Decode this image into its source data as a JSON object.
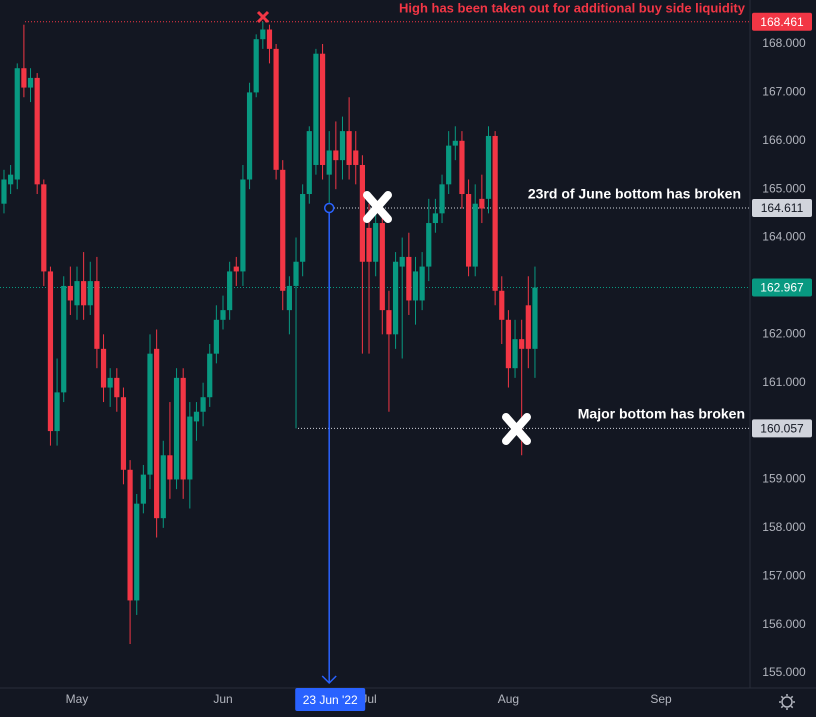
{
  "chart_data": {
    "type": "candlestick",
    "up_color": "#089981",
    "down_color": "#f23645",
    "xlim": [
      -0.6,
      112.4
    ],
    "xticks": [
      {
        "value": 11,
        "label": "May"
      },
      {
        "value": 33,
        "label": "Jun"
      },
      {
        "value": 55,
        "label": "Jul"
      },
      {
        "value": 76,
        "label": "Aug"
      },
      {
        "value": 99,
        "label": "Sep"
      }
    ],
    "ylim": [
      154.69,
      168.91
    ],
    "yticks": [
      {
        "value": 155,
        "label": "155.000"
      },
      {
        "value": 156,
        "label": "156.000"
      },
      {
        "value": 157,
        "label": "157.000"
      },
      {
        "value": 158,
        "label": "158.000"
      },
      {
        "value": 159,
        "label": "159.000"
      },
      {
        "value": 160,
        "label": "160.000"
      },
      {
        "value": 161,
        "label": "161.000"
      },
      {
        "value": 162,
        "label": "162.000"
      },
      {
        "value": 163,
        "label": "163.000"
      },
      {
        "value": 164,
        "label": "164.000"
      },
      {
        "value": 165,
        "label": "165.000"
      },
      {
        "value": 166,
        "label": "166.000"
      },
      {
        "value": 167,
        "label": "167.000"
      },
      {
        "value": 168,
        "label": "168.000"
      }
    ],
    "grid": false,
    "candles": {
      "open": [
        164.7,
        165.1,
        165.2,
        167.5,
        167.1,
        167.3,
        165.1,
        163.3,
        160.0,
        160.8,
        163.0,
        162.6,
        163.1,
        162.6,
        163.1,
        161.7,
        160.9,
        161.1,
        160.7,
        159.2,
        156.5,
        158.5,
        159.1,
        161.7,
        158.2,
        159.5,
        159.0,
        161.1,
        159.0,
        160.2,
        160.4,
        160.7,
        161.6,
        162.3,
        162.5,
        163.4,
        163.3,
        165.2,
        167.0,
        168.1,
        168.3,
        167.9,
        165.4,
        162.5,
        163.0,
        163.5,
        164.9,
        165.5,
        167.8,
        165.3,
        165.8,
        165.6,
        166.2,
        165.8,
        165.5,
        164.2,
        163.5,
        164.3,
        162.5,
        162.0,
        163.4,
        163.6,
        162.7,
        162.7,
        163.4,
        164.3,
        164.5,
        165.1,
        165.9,
        166.0,
        164.9,
        163.4,
        164.8,
        164.8,
        166.1,
        162.9,
        162.3,
        161.3,
        161.9,
        162.6,
        161.7
      ],
      "high": [
        165.4,
        165.5,
        167.6,
        168.4,
        167.5,
        167.4,
        165.2,
        163.4,
        161.5,
        163.2,
        163.4,
        163.4,
        163.7,
        163.5,
        163.6,
        162.0,
        161.3,
        161.3,
        160.9,
        159.4,
        158.7,
        159.3,
        162.0,
        162.1,
        159.8,
        160.6,
        161.3,
        161.3,
        160.6,
        160.6,
        161.0,
        161.8,
        162.6,
        162.8,
        163.5,
        163.6,
        165.5,
        167.2,
        168.2,
        168.461,
        168.4,
        168.0,
        165.6,
        163.2,
        164.0,
        165.1,
        166.3,
        167.9,
        168.0,
        166.2,
        166.4,
        166.5,
        166.9,
        166.2,
        165.7,
        164.7,
        164.6,
        164.5,
        162.9,
        163.7,
        164.0,
        164.1,
        163.6,
        163.7,
        164.8,
        164.8,
        165.3,
        166.2,
        166.3,
        166.2,
        165.2,
        165.1,
        165.3,
        166.3,
        166.2,
        163.2,
        162.5,
        162.3,
        162.3,
        163.2,
        163.4
      ],
      "low": [
        164.5,
        164.9,
        165.0,
        166.9,
        166.8,
        164.9,
        163.0,
        159.7,
        159.7,
        160.6,
        162.4,
        162.3,
        162.3,
        162.4,
        161.3,
        160.6,
        160.5,
        160.4,
        158.9,
        155.6,
        156.2,
        158.3,
        158.8,
        157.8,
        158.0,
        158.6,
        158.8,
        158.6,
        158.4,
        159.8,
        160.1,
        160.5,
        161.4,
        162.1,
        162.3,
        163.0,
        163.0,
        165.0,
        166.9,
        167.9,
        167.6,
        165.2,
        162.5,
        162.0,
        160.057,
        163.2,
        164.7,
        165.3,
        165.2,
        164.611,
        165.0,
        165.2,
        165.2,
        165.1,
        161.6,
        161.6,
        163.2,
        162.0,
        160.4,
        161.7,
        161.5,
        162.4,
        162.2,
        162.5,
        163.1,
        164.1,
        164.3,
        164.9,
        165.6,
        164.6,
        163.2,
        163.2,
        164.3,
        164.5,
        162.6,
        161.8,
        160.9,
        161.1,
        159.5,
        161.3,
        161.1
      ],
      "close": [
        165.2,
        165.3,
        167.5,
        167.1,
        167.3,
        165.1,
        163.3,
        160.0,
        160.8,
        163.0,
        162.7,
        163.1,
        162.6,
        163.1,
        161.7,
        160.9,
        161.1,
        160.7,
        159.2,
        156.5,
        158.5,
        159.1,
        161.6,
        158.2,
        159.5,
        159.0,
        161.1,
        159.0,
        160.3,
        160.4,
        160.7,
        161.6,
        162.3,
        162.5,
        163.3,
        163.3,
        165.2,
        167.0,
        168.1,
        168.3,
        167.9,
        165.4,
        162.9,
        163.0,
        163.5,
        164.9,
        166.2,
        167.8,
        165.5,
        165.8,
        165.6,
        166.2,
        165.5,
        165.5,
        163.5,
        163.5,
        164.3,
        162.5,
        162.0,
        163.5,
        163.6,
        162.7,
        163.3,
        163.4,
        164.3,
        164.5,
        165.1,
        165.9,
        166.0,
        164.9,
        163.4,
        164.7,
        164.6,
        166.1,
        162.9,
        162.3,
        161.3,
        161.9,
        161.7,
        161.7,
        162.967
      ]
    },
    "levels": [
      {
        "value": 168.461,
        "color": "#f23645"
      },
      {
        "value": 164.611,
        "color": "#d1d4dc"
      },
      {
        "value": 162.967,
        "color": "#089981"
      },
      {
        "value": 160.057,
        "color": "#d1d4dc"
      }
    ],
    "crosshair": {
      "index": 49,
      "value": 164.611,
      "label": "23 Jun '22",
      "color": "#2962ff"
    },
    "annotations": [
      "High has been taken out for additional buy side liquidity",
      "23rd of June bottom has broken",
      "Major bottom has broken"
    ]
  }
}
